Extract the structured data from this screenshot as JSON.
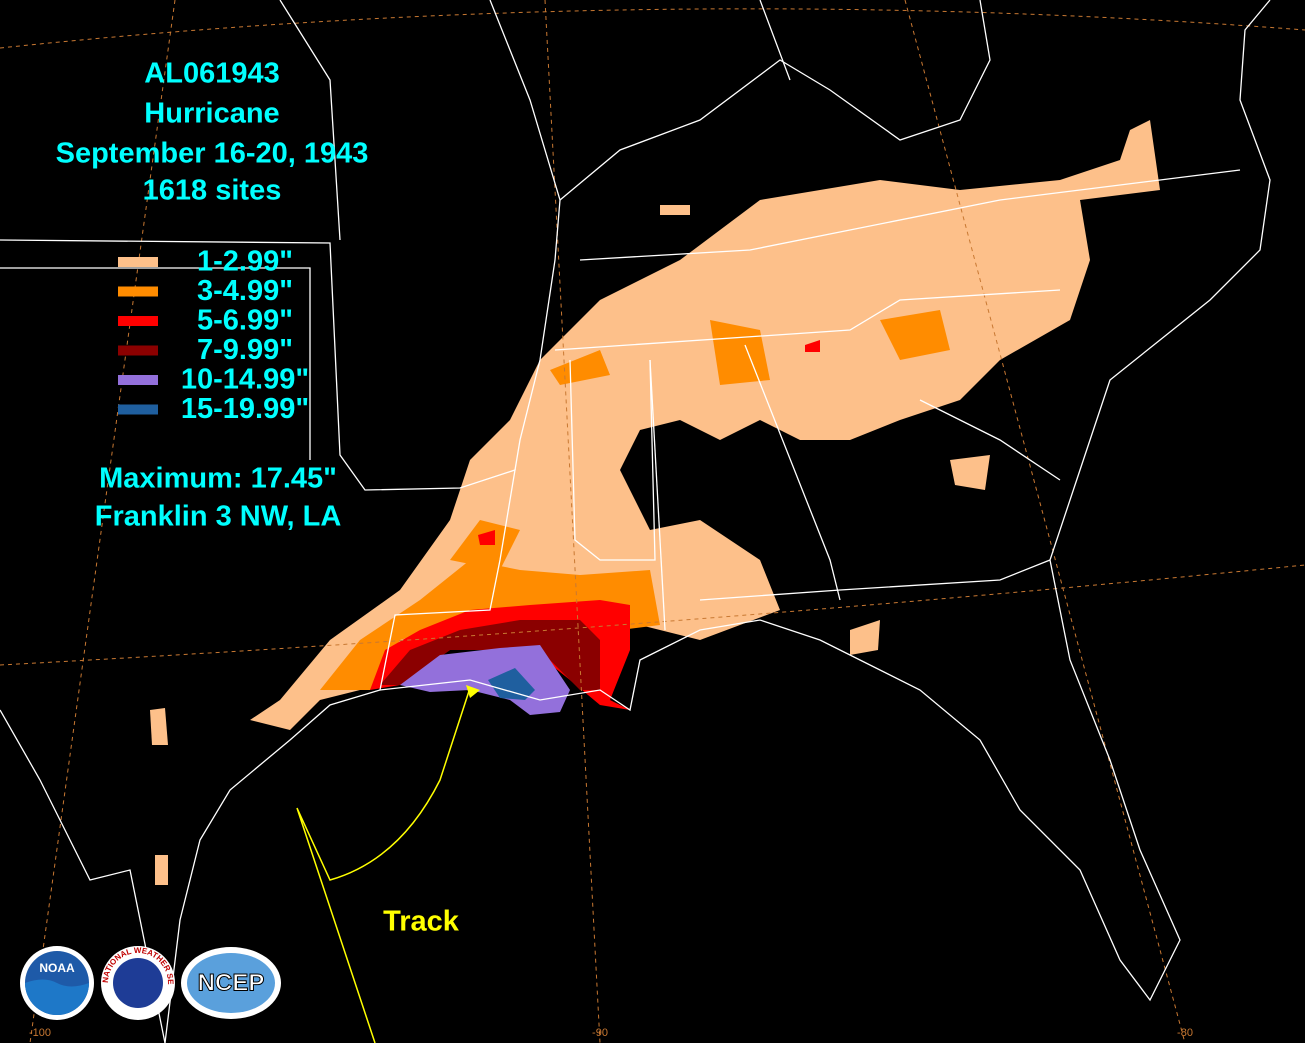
{
  "title": {
    "storm": "AL061943",
    "type": "Hurricane",
    "dates": "September 16-20, 1943",
    "sites": "1618 sites"
  },
  "legend": [
    {
      "label": "1-2.99\"",
      "color": "#fdc08a"
    },
    {
      "label": "3-4.99\"",
      "color": "#ff8c00"
    },
    {
      "label": "5-6.99\"",
      "color": "#ff0000"
    },
    {
      "label": "7-9.99\"",
      "color": "#8b0000"
    },
    {
      "label": "10-14.99\"",
      "color": "#9370db"
    },
    {
      "label": "15-19.99\"",
      "color": "#1f5f9f"
    }
  ],
  "maximum": {
    "value": "Maximum: 17.45\"",
    "location": "Franklin 3 NW, LA"
  },
  "track_label": "Track",
  "longitude_labels": [
    "-100",
    "-90",
    "-80"
  ],
  "logos": {
    "noaa": "NOAA",
    "nws": "NATIONAL WEATHER SERVICE",
    "ncep": "NCEP"
  }
}
